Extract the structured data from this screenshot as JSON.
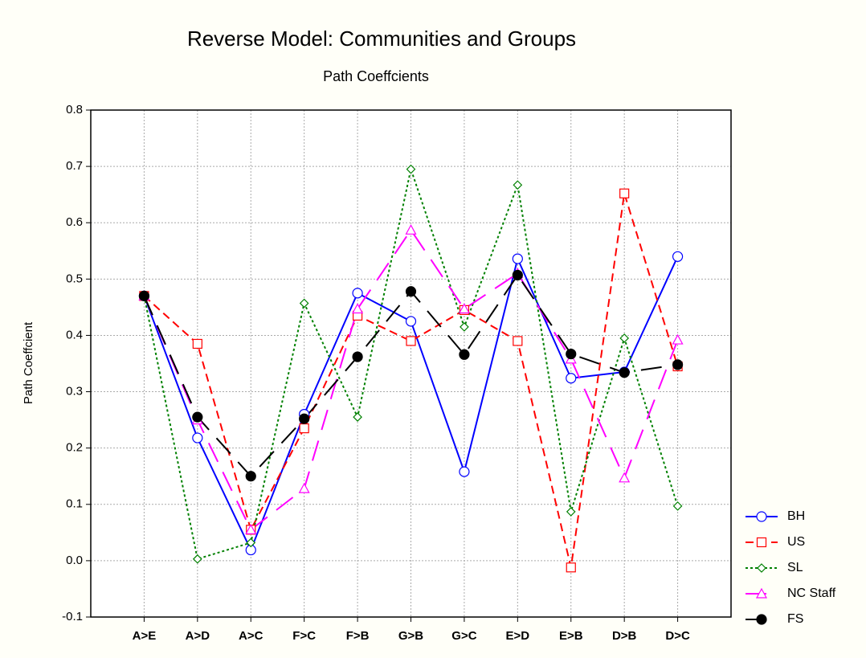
{
  "chart_data": {
    "type": "line",
    "title": "Reverse Model: Communities and Groups",
    "subtitle": "Path Coeffcients",
    "y_label": "Path Coeffcient",
    "categories": [
      "A>E",
      "A>D",
      "A>C",
      "F>C",
      "F>B",
      "G>B",
      "G>C",
      "E>D",
      "E>B",
      "D>B",
      "D>C"
    ],
    "ylim": [
      -0.1,
      0.8
    ],
    "yticks": [
      -0.1,
      {
        "value": 0,
        "label": "0.0"
      },
      0.1,
      0.2,
      0.3,
      0.4,
      0.5,
      0.6,
      0.7,
      0.8
    ],
    "grid": true,
    "legend": "right",
    "series": [
      {
        "name": "BH",
        "color": "#0000ff",
        "dash": "solid",
        "marker": "circle",
        "values": [
          0.47,
          0.218,
          0.019,
          0.26,
          0.475,
          0.425,
          0.158,
          0.536,
          0.324,
          0.335,
          0.54
        ]
      },
      {
        "name": "US",
        "color": "#ff0000",
        "dash": "dashed",
        "marker": "square",
        "values": [
          0.47,
          0.385,
          0.055,
          0.235,
          0.435,
          0.39,
          0.445,
          0.39,
          -0.012,
          0.652,
          0.345
        ]
      },
      {
        "name": "SL",
        "color": "#008000",
        "dash": "dotted",
        "marker": "diamond",
        "values": [
          0.47,
          0.003,
          0.032,
          0.457,
          0.255,
          0.695,
          0.415,
          0.667,
          0.087,
          0.395,
          0.097
        ]
      },
      {
        "name": "NC Staff",
        "color": "#ff00ff",
        "dash": "longdash",
        "marker": "triangle",
        "values": [
          0.47,
          0.25,
          0.055,
          0.128,
          0.447,
          0.587,
          0.447,
          0.51,
          0.358,
          0.147,
          0.392
        ]
      },
      {
        "name": "FS",
        "color": "#000000",
        "dash": "longdash",
        "marker": "filled-circle",
        "values": [
          0.47,
          0.255,
          0.15,
          0.252,
          0.362,
          0.478,
          0.366,
          0.507,
          0.367,
          0.334,
          0.348
        ]
      }
    ]
  }
}
